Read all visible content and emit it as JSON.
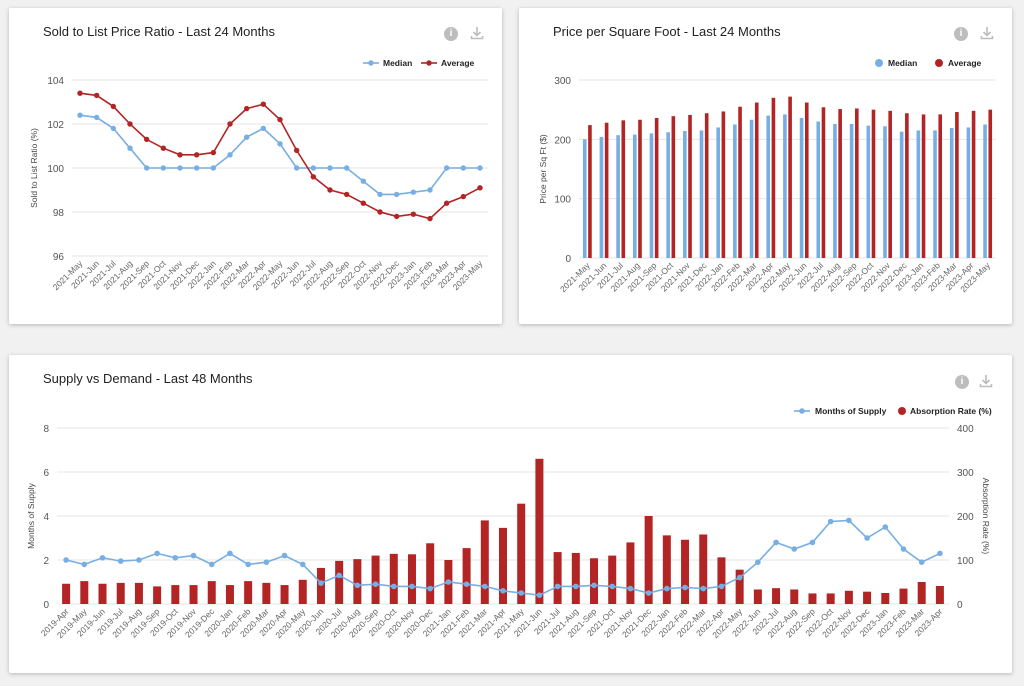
{
  "charts": {
    "ratio": {
      "title": "Sold to List Price Ratio - Last 24 Months"
    },
    "ppsf": {
      "title": "Price per Square Foot - Last 24 Months"
    },
    "supply": {
      "title": "Supply vs Demand - Last 48 Months"
    }
  },
  "icons": {
    "info": "info-icon",
    "download": "download-icon"
  },
  "colors": {
    "blue": "#77aee3",
    "red": "#b32424",
    "grid": "#e5e5e5"
  },
  "chart_data": [
    {
      "id": "ratio",
      "type": "line",
      "title": "Sold to List Price Ratio - Last 24 Months",
      "ylabel": "Sold to List Ratio (%)",
      "ylim": [
        96,
        104
      ],
      "yticks": [
        96,
        98,
        100,
        102,
        104
      ],
      "categories": [
        "2021-May",
        "2021-Jun",
        "2021-Jul",
        "2021-Aug",
        "2021-Sep",
        "2021-Oct",
        "2021-Nov",
        "2021-Dec",
        "2022-Jan",
        "2022-Feb",
        "2022-Mar",
        "2022-Apr",
        "2022-May",
        "2022-Jun",
        "2022-Jul",
        "2022-Aug",
        "2022-Sep",
        "2022-Oct",
        "2022-Nov",
        "2022-Dec",
        "2023-Jan",
        "2023-Feb",
        "2023-Mar",
        "2023-Apr",
        "2023-May"
      ],
      "series": [
        {
          "name": "Median",
          "values": [
            102.4,
            102.3,
            101.8,
            100.9,
            100,
            100,
            100,
            100,
            100,
            100.6,
            101.4,
            101.8,
            101.1,
            100,
            100,
            100,
            100,
            99.4,
            98.8,
            98.8,
            98.9,
            99,
            100,
            100,
            100
          ]
        },
        {
          "name": "Average",
          "values": [
            103.4,
            103.3,
            102.8,
            102,
            101.3,
            100.9,
            100.6,
            100.6,
            100.7,
            102,
            102.7,
            102.9,
            102.2,
            100.8,
            99.6,
            99,
            98.8,
            98.4,
            98,
            97.8,
            97.9,
            97.7,
            98.4,
            98.7,
            99.1
          ]
        }
      ],
      "legend": "top-right"
    },
    {
      "id": "ppsf",
      "type": "bar",
      "title": "Price per Square Foot - Last 24 Months",
      "ylabel": "Price per Sq Ft ($)",
      "ylim": [
        0,
        300
      ],
      "yticks": [
        0,
        100,
        200,
        300
      ],
      "categories": [
        "2021-May",
        "2021-Jun",
        "2021-Jul",
        "2021-Aug",
        "2021-Sep",
        "2021-Oct",
        "2021-Nov",
        "2021-Dec",
        "2022-Jan",
        "2022-Feb",
        "2022-Mar",
        "2022-Apr",
        "2022-May",
        "2022-Jun",
        "2022-Jul",
        "2022-Aug",
        "2022-Sep",
        "2022-Oct",
        "2022-Nov",
        "2022-Dec",
        "2023-Jan",
        "2023-Feb",
        "2023-Mar",
        "2023-Apr",
        "2023-May"
      ],
      "series": [
        {
          "name": "Median",
          "values": [
            200,
            204,
            207,
            208,
            210,
            212,
            214,
            215,
            220,
            225,
            233,
            240,
            242,
            236,
            230,
            226,
            226,
            223,
            222,
            213,
            215,
            215,
            219,
            220,
            225
          ]
        },
        {
          "name": "Average",
          "values": [
            224,
            228,
            232,
            233,
            236,
            239,
            241,
            244,
            247,
            255,
            262,
            270,
            272,
            262,
            254,
            251,
            252,
            250,
            248,
            244,
            242,
            242,
            246,
            248,
            250
          ]
        }
      ],
      "legend": "top-right"
    },
    {
      "id": "supply",
      "type": "bar",
      "title": "Supply vs Demand - Last 48 Months",
      "ylabel": "Months of Supply",
      "y2label": "Absorption Rate (%)",
      "ylim": [
        0,
        8
      ],
      "yticks": [
        0,
        2,
        4,
        6,
        8
      ],
      "y2lim": [
        0,
        400
      ],
      "y2ticks": [
        0,
        100,
        200,
        300,
        400
      ],
      "categories": [
        "2019-Apr",
        "2019-May",
        "2019-Jun",
        "2019-Jul",
        "2019-Aug",
        "2019-Sep",
        "2019-Oct",
        "2019-Nov",
        "2019-Dec",
        "2020-Jan",
        "2020-Feb",
        "2020-Mar",
        "2020-Apr",
        "2020-May",
        "2020-Jun",
        "2020-Jul",
        "2020-Aug",
        "2020-Sep",
        "2020-Oct",
        "2020-Nov",
        "2020-Dec",
        "2021-Jan",
        "2021-Feb",
        "2021-Mar",
        "2021-Apr",
        "2021-May",
        "2021-Jun",
        "2021-Jul",
        "2021-Aug",
        "2021-Sep",
        "2021-Oct",
        "2021-Nov",
        "2021-Dec",
        "2022-Jan",
        "2022-Feb",
        "2022-Mar",
        "2022-Apr",
        "2022-May",
        "2022-Jun",
        "2022-Jul",
        "2022-Aug",
        "2022-Sep",
        "2022-Oct",
        "2022-Nov",
        "2022-Dec",
        "2023-Jan",
        "2023-Feb",
        "2023-Mar",
        "2023-Apr"
      ],
      "series": [
        {
          "name": "Months of Supply",
          "type": "line",
          "axis": "left",
          "values": [
            2.0,
            1.8,
            2.1,
            1.95,
            2.0,
            2.3,
            2.1,
            2.2,
            1.8,
            2.3,
            1.8,
            1.9,
            2.2,
            1.8,
            0.95,
            1.3,
            0.85,
            0.9,
            0.8,
            0.8,
            0.7,
            1.0,
            0.9,
            0.8,
            0.6,
            0.5,
            0.4,
            0.8,
            0.8,
            0.85,
            0.8,
            0.7,
            0.5,
            0.7,
            0.75,
            0.7,
            0.8,
            1.2,
            1.9,
            2.8,
            2.5,
            2.8,
            3.75,
            3.8,
            3.0,
            3.5,
            2.5,
            1.9,
            2.3
          ]
        },
        {
          "name": "Absorption Rate (%)",
          "type": "bar",
          "axis": "right",
          "values": [
            46,
            52,
            46,
            48,
            48,
            40,
            43,
            43,
            52,
            43,
            52,
            48,
            43,
            55,
            82,
            98,
            102,
            110,
            114,
            113,
            138,
            100,
            127,
            190,
            173,
            228,
            330,
            118,
            116,
            104,
            110,
            140,
            200,
            156,
            146,
            158,
            106,
            78,
            33,
            36,
            33,
            24,
            24,
            30,
            28,
            25,
            35,
            50,
            41
          ]
        }
      ],
      "legend": "top-right"
    }
  ]
}
